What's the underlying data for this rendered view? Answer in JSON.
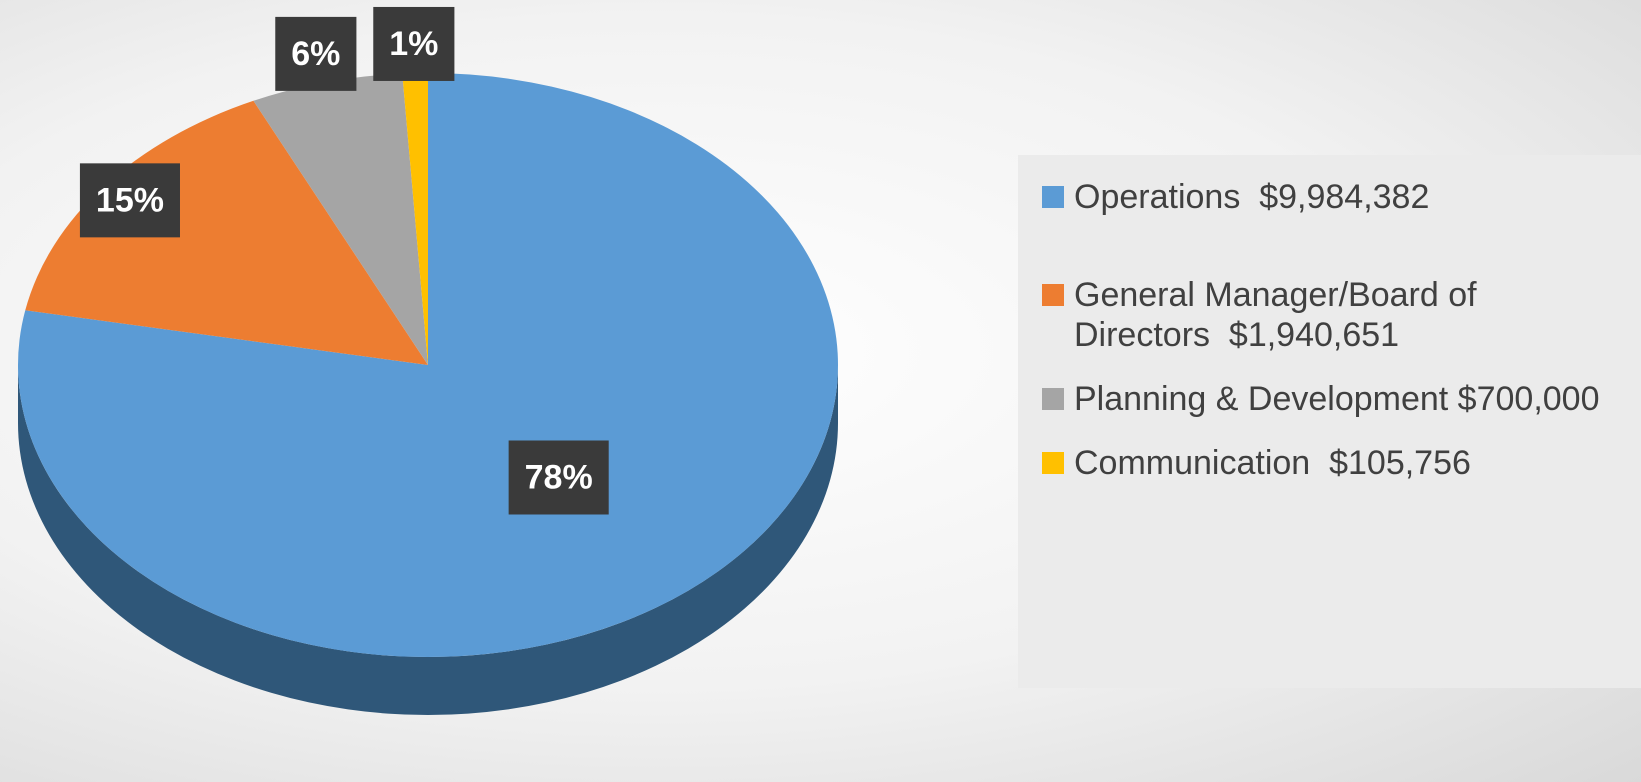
{
  "chart_data": {
    "type": "pie",
    "categories": [
      "Operations  $9,984,382",
      "General Manager/Board of Directors  $1,940,651",
      "Planning & Development $700,000",
      "Communication  $105,756"
    ],
    "values": [
      78,
      15,
      6,
      1
    ],
    "value_labels": [
      "78%",
      "15%",
      "6%",
      "1%"
    ],
    "colors": [
      "#5b9bd5",
      "#ed7d31",
      "#a5a5a5",
      "#ffc000"
    ],
    "legend": "right"
  }
}
